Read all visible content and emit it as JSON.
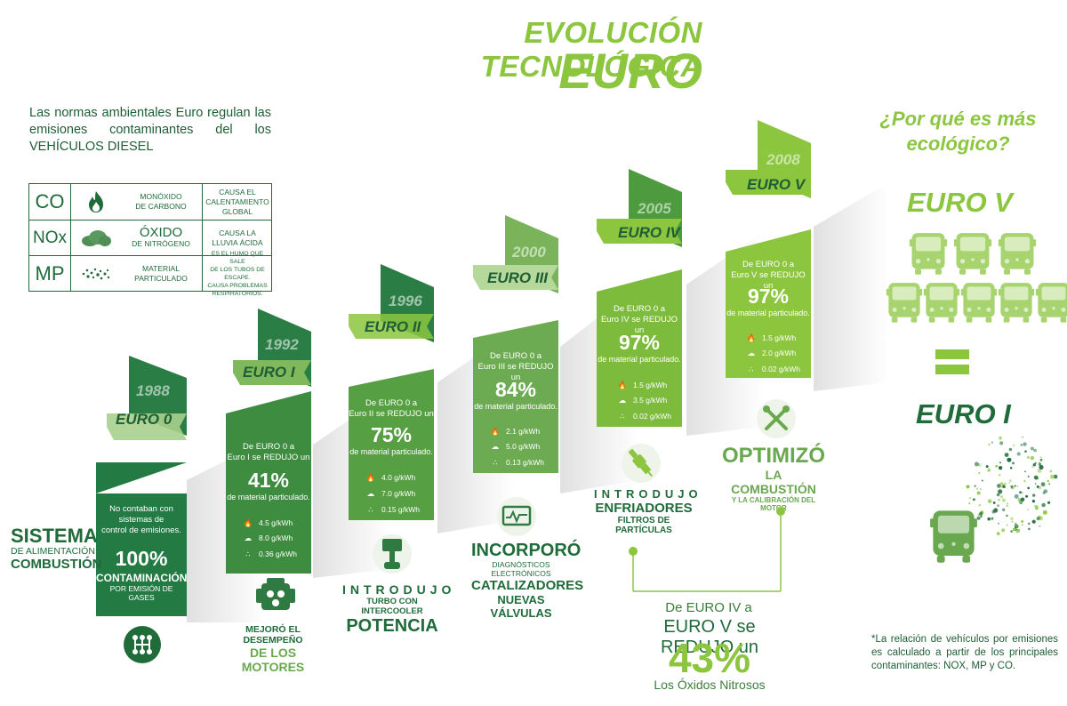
{
  "title": {
    "line1": "EVOLUCIÓN TECNOLÓGICA",
    "line2": "EURO"
  },
  "intro": "Las normas ambientales Euro regulan las emisiones contaminantes del los VEHÍCULOS DIESEL",
  "pollutants": [
    {
      "symbol": "CO",
      "icon": "flame-icon",
      "name_line1": "MONÓXIDO",
      "name_line2": "DE CARBONO",
      "effect_line1": "CAUSA EL",
      "effect_line2": "CALENTAMIENTO GLOBAL",
      "effect_line3": ""
    },
    {
      "symbol": "NOx",
      "icon": "cloud-icon",
      "name_line1": "ÓXIDO",
      "name_line2": "DE NITRÓGENO",
      "effect_line1": "CAUSA LA",
      "effect_line2": "LLUVIA ÁCIDA",
      "effect_line3": ""
    },
    {
      "symbol": "MP",
      "icon": "particles-icon",
      "name_line1": "MATERIAL",
      "name_line2": "PARTICULADO",
      "effect_line1": "ES EL HUMO QUE SALE",
      "effect_line2": "DE LOS TUBOS DE ESCAPE.",
      "effect_line3": "CAUSA PROBLEMAS RESPIRATORIOS."
    }
  ],
  "stages": [
    {
      "year": "1988",
      "euro": "EURO 0",
      "desc_line1": "No contaban con",
      "desc_line2": "sistemas de",
      "desc_line3": "control de emisiones.",
      "pct": "100%",
      "pct_sub1": "CONTAMINACIÓN",
      "pct_sub2": "POR EMISIÓN DE GASES",
      "cap_line1": "SISTEMA",
      "cap_line2": "DE ALIMENTACIÓN",
      "cap_line3": "COMBUSTIÓN",
      "icon": "gearbox-icon"
    },
    {
      "year": "1992",
      "euro": "EURO I",
      "desc_line1": "De EURO 0 a",
      "desc_line2": "Euro I se REDUJO un",
      "pct": "41%",
      "pct_sub1": "de material particulado.",
      "co": "4.5 g/kWh",
      "nox": "8.0 g/kWh",
      "mp": "0.36 g/kWh",
      "cap_line1": "MEJORÓ EL DESEMPEÑO",
      "cap_line2": "DE LOS MOTORES",
      "icon": "engine-icon"
    },
    {
      "year": "1996",
      "euro": "EURO II",
      "desc_line1": "De EURO 0 a",
      "desc_line2": "Euro II se REDUJO un",
      "pct": "75%",
      "pct_sub1": "de material particulado.",
      "co": "4.0 g/kWh",
      "nox": "7.0 g/kWh",
      "mp": "0.15 g/kWh",
      "cap_line1": "INTRODUJO",
      "cap_line2": "TURBO CON INTERCOOLER",
      "cap_line3": "POTENCIA",
      "icon": "piston-icon"
    },
    {
      "year": "2000",
      "euro": "EURO III",
      "desc_line1": "De EURO 0 a",
      "desc_line2": "Euro III se REDUJO un",
      "pct": "84%",
      "pct_sub1": "de material particulado.",
      "co": "2.1 g/kWh",
      "nox": "5.0 g/kWh",
      "mp": "0.13 g/kWh",
      "cap_line1": "INCORPORÓ",
      "cap_line2": "DIAGNÓSTICOS ELECTRÓNICOS",
      "cap_line3": "CATALIZADORES",
      "cap_line4": "NUEVAS VÁLVULAS",
      "icon": "diagnostics-icon"
    },
    {
      "year": "2005",
      "euro": "EURO IV",
      "desc_line1": "De EURO 0 a",
      "desc_line2": "Euro IV se REDUJO un",
      "pct": "97%",
      "pct_sub1": "de material particulado.",
      "co": "1.5 g/kWh",
      "nox": "3.5 g/kWh",
      "mp": "0.02 g/kWh",
      "cap_line1": "INTRODUJO",
      "cap_line2": "ENFRIADORES",
      "cap_line3": "FILTROS DE PARTÍCULAS",
      "icon": "spark-plug-icon"
    },
    {
      "year": "2008",
      "euro": "EURO V",
      "desc_line1": "De EURO 0 a",
      "desc_line2": "Euro V se REDUJO un",
      "pct": "97%",
      "pct_sub1": "de material particulado.",
      "co": "1.5 g/kWh",
      "nox": "2.0 g/kWh",
      "mp": "0.02 g/kWh",
      "cap_line1": "OPTIMIZÓ",
      "cap_line2": "LA COMBUSTIÓN",
      "cap_line3": "Y LA CALIBRACIÓN DEL MOTOR",
      "icon": "tools-icon"
    }
  ],
  "comparison": {
    "line1": "De EURO IV a",
    "line2": "EURO V se REDUJO un",
    "pct": "43%",
    "line4": "Los Óxidos Nitrosos"
  },
  "right": {
    "question": "¿Por qué es más ecológico?",
    "euro_v": "EURO V",
    "euro_i": "EURO I",
    "bus_count_euro_v": 8,
    "bus_count_euro_i": 1,
    "note": "*La relación de vehículos por emisiones es calculado a partir de los principales contaminantes: NOX, MP y CO."
  },
  "colors": {
    "light_green": "#8cc63f",
    "mid_green": "#6aa84f",
    "dark_green": "#1f6b3a",
    "col0": "#237a43",
    "col1": "#3d8c3f",
    "col2": "#56a043",
    "col3": "#6dab52",
    "col4": "#7dbb3d",
    "col5": "#8cc63f"
  }
}
